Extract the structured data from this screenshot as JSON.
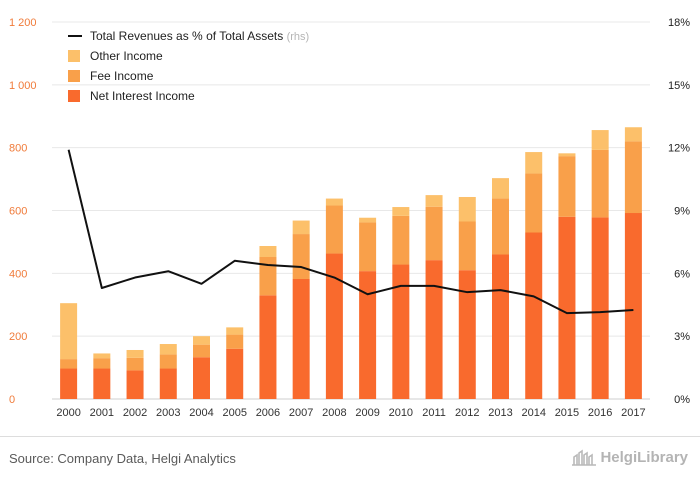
{
  "chart_data": {
    "type": "bar",
    "stacked": true,
    "categories": [
      "2000",
      "2001",
      "2002",
      "2003",
      "2004",
      "2005",
      "2006",
      "2007",
      "2008",
      "2009",
      "2010",
      "2011",
      "2012",
      "2013",
      "2014",
      "2015",
      "2016",
      "2017"
    ],
    "series": [
      {
        "name": "Net Interest Income",
        "color": "#f96a2d",
        "values": [
          97,
          97,
          91,
          97,
          133,
          160,
          330,
          382,
          463,
          407,
          428,
          442,
          410,
          460,
          530,
          580,
          578,
          592
        ]
      },
      {
        "name": "Fee Income",
        "color": "#f9a04a",
        "values": [
          30,
          33,
          40,
          45,
          40,
          45,
          122,
          143,
          153,
          155,
          155,
          170,
          155,
          178,
          188,
          193,
          215,
          228
        ]
      },
      {
        "name": "Other Income",
        "color": "#fcc06a",
        "values": [
          178,
          15,
          25,
          33,
          27,
          23,
          35,
          43,
          22,
          15,
          28,
          37,
          78,
          65,
          68,
          9,
          63,
          45
        ]
      }
    ],
    "line_series": {
      "name": "Total Revenues as % of Total Assets",
      "axis_note": "(rhs)",
      "color": "#111111",
      "values": [
        11.9,
        5.3,
        5.8,
        6.1,
        5.5,
        6.6,
        6.4,
        6.3,
        5.8,
        5.0,
        5.4,
        5.4,
        5.1,
        5.2,
        4.9,
        4.1,
        4.15,
        4.25
      ]
    },
    "y_left": {
      "ylim": [
        0,
        1200
      ],
      "ticks": [
        0,
        200,
        400,
        600,
        800,
        1000,
        1200
      ],
      "tick_labels": [
        "0",
        "200",
        "400",
        "600",
        "800",
        "1 000",
        "1 200"
      ],
      "label_color": "#f07b3a"
    },
    "y_right": {
      "ylim": [
        0,
        18
      ],
      "ticks": [
        0,
        3,
        6,
        9,
        12,
        15,
        18
      ],
      "tick_labels": [
        "0%",
        "3%",
        "6%",
        "9%",
        "12%",
        "15%",
        "18%"
      ]
    },
    "grid": true,
    "legend_position": "top-left",
    "title": "",
    "xlabel": "",
    "ylabel": ""
  },
  "footer": {
    "source": "Source: Company Data, Helgi Analytics",
    "brand": "HelgiLibrary",
    "brand_icon": "helgi-logo-icon"
  }
}
